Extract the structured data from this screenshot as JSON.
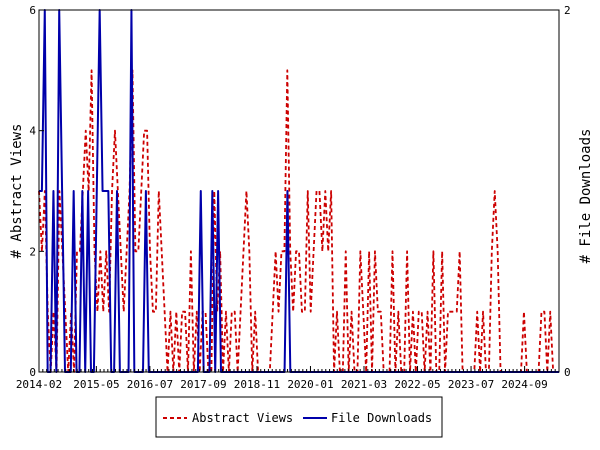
{
  "chart_data": {
    "type": "line",
    "y_left_label": "# Abstract Views",
    "y_right_label": "# File Downloads",
    "x_ticks": [
      "2014-02",
      "2015-05",
      "2016-07",
      "2017-09",
      "2018-11",
      "2020-01",
      "2021-03",
      "2022-05",
      "2023-07",
      "2024-09"
    ],
    "y_left_ticks": [
      "0",
      "2",
      "4",
      "6"
    ],
    "y_right_ticks": [
      "0",
      "2"
    ],
    "y_left_range": [
      0,
      6
    ],
    "y_right_range": [
      0,
      2
    ],
    "x_range": [
      "2014-02",
      "2025-06"
    ],
    "grid": false,
    "legend_position": "bottom-center",
    "series": [
      {
        "name": "Abstract Views",
        "axis": "left",
        "color": "#cc0000",
        "style": "dashed",
        "values": [
          3,
          2,
          3,
          1,
          0,
          1,
          0,
          3,
          2,
          1,
          0,
          1,
          0,
          2,
          2,
          3,
          4,
          3,
          5,
          2,
          1,
          2,
          1,
          2,
          1,
          3,
          4,
          3,
          2,
          1,
          2,
          3,
          5,
          2,
          2,
          3,
          4,
          4,
          2,
          1,
          1,
          3,
          2,
          1,
          0,
          1,
          0,
          1,
          0,
          1,
          1,
          0,
          2,
          0,
          1,
          0,
          1,
          1,
          0,
          0,
          3,
          1,
          2,
          0,
          1,
          0,
          1,
          1,
          0,
          1,
          2,
          3,
          2,
          0,
          1,
          0,
          0,
          0,
          0,
          0,
          1,
          2,
          1,
          2,
          2,
          5,
          2,
          1,
          2,
          2,
          1,
          1,
          3,
          1,
          2,
          3,
          3,
          2,
          3,
          2,
          3,
          0,
          1,
          0,
          0,
          2,
          0,
          1,
          0,
          0,
          2,
          1,
          0,
          2,
          0,
          2,
          1,
          1,
          0,
          0,
          0,
          2,
          0,
          1,
          0,
          0,
          2,
          0,
          1,
          0,
          1,
          1,
          0,
          1,
          0,
          2,
          0,
          0,
          2,
          0,
          1,
          1,
          1,
          1,
          2,
          0,
          0,
          0,
          0,
          0,
          1,
          0,
          1,
          0,
          0,
          2,
          3,
          2,
          0,
          0,
          0,
          0,
          0,
          0,
          0,
          0,
          1,
          0,
          0,
          0,
          0,
          0,
          1,
          1,
          0,
          1,
          0,
          0,
          0
        ]
      },
      {
        "name": "File Downloads",
        "axis": "right",
        "color": "#0000aa",
        "style": "solid",
        "values": [
          1,
          1,
          2,
          0,
          0,
          1,
          0,
          2,
          1,
          0,
          0,
          0,
          1,
          0,
          0,
          1,
          0,
          1,
          0,
          0,
          1,
          2,
          1,
          1,
          1,
          0,
          0,
          1,
          0,
          0,
          0,
          0,
          2,
          0,
          0,
          0,
          0,
          1,
          0,
          0,
          0,
          0,
          0,
          0,
          0,
          0,
          0,
          0,
          0,
          0,
          0,
          0,
          0,
          0,
          0,
          0,
          1,
          0,
          0,
          0,
          1,
          0,
          1,
          0,
          0,
          0,
          0,
          0,
          0,
          0,
          0,
          0,
          0,
          0,
          0,
          0,
          0,
          0,
          0,
          0,
          0,
          0,
          0,
          0,
          0,
          0,
          1,
          0,
          0,
          0,
          0,
          0,
          0,
          0,
          0,
          0,
          0,
          0,
          0,
          0,
          0,
          0,
          0,
          0,
          0,
          0,
          0,
          0,
          0,
          0,
          0,
          0,
          0,
          0,
          0,
          0,
          0,
          0,
          0,
          0,
          0,
          0,
          0,
          0,
          0,
          0,
          0,
          0,
          0,
          0,
          0,
          0,
          0,
          0,
          0,
          0,
          0,
          0,
          0,
          0,
          0,
          0,
          0,
          0,
          0,
          0,
          0,
          0,
          0,
          0,
          0,
          0,
          0,
          0,
          0,
          0,
          0,
          0,
          0,
          0,
          0,
          0,
          0,
          0,
          0,
          0,
          0,
          0,
          0,
          0,
          0,
          0,
          0,
          0,
          0,
          0,
          0,
          0,
          0,
          0,
          0
        ]
      }
    ]
  }
}
